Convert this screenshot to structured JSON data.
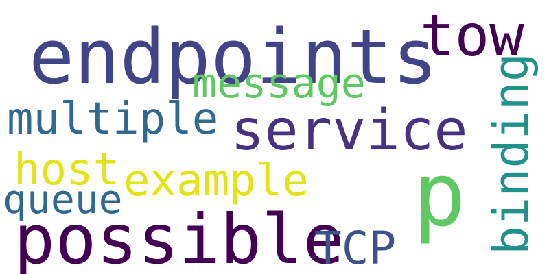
{
  "words": [
    {
      "id": "endpoints",
      "text": "endpoints",
      "color": "#414487",
      "orientation": "horizontal"
    },
    {
      "id": "tow",
      "text": "tow",
      "color": "#440154",
      "orientation": "horizontal"
    },
    {
      "id": "message",
      "text": "message",
      "color": "#5ec962",
      "orientation": "horizontal"
    },
    {
      "id": "multiple",
      "text": "multiple",
      "color": "#31688e",
      "orientation": "horizontal"
    },
    {
      "id": "service",
      "text": "service",
      "color": "#46327e",
      "orientation": "horizontal"
    },
    {
      "id": "host",
      "text": "host",
      "color": "#e2e418",
      "orientation": "horizontal"
    },
    {
      "id": "example",
      "text": "example",
      "color": "#e2e418",
      "orientation": "horizontal"
    },
    {
      "id": "queue",
      "text": "queue",
      "color": "#31688e",
      "orientation": "horizontal"
    },
    {
      "id": "p",
      "text": "p",
      "color": "#5ec962",
      "orientation": "horizontal"
    },
    {
      "id": "possible",
      "text": "possible",
      "color": "#440154",
      "orientation": "horizontal"
    },
    {
      "id": "TCP",
      "text": "TCP",
      "color": "#3b528b",
      "orientation": "horizontal"
    },
    {
      "id": "binding",
      "text": "binding",
      "color": "#21918c",
      "orientation": "vertical"
    }
  ]
}
